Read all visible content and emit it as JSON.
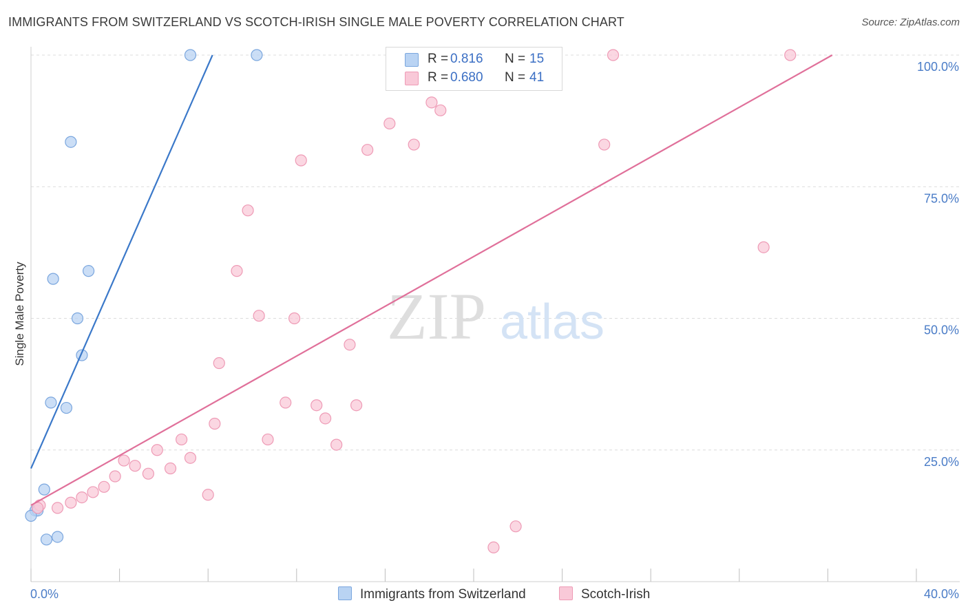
{
  "header": {
    "title": "IMMIGRANTS FROM SWITZERLAND VS SCOTCH-IRISH SINGLE MALE POVERTY CORRELATION CHART",
    "source": "Source: ZipAtlas.com"
  },
  "watermark": {
    "zip": "ZIP",
    "atlas": "atlas"
  },
  "legend": {
    "r_label": "R =",
    "n_label": "N =",
    "series": [
      {
        "name": "Immigrants from Switzerland",
        "r": "0.816",
        "n": "15"
      },
      {
        "name": "Scotch-Irish",
        "r": "0.680",
        "n": "41"
      }
    ]
  },
  "colors": {
    "blue_fill": "#b9d3f3",
    "blue_stroke": "#7aa6de",
    "blue_line": "#3a78c9",
    "pink_fill": "#f9c9d8",
    "pink_stroke": "#ee9ab5",
    "pink_line": "#e0709a",
    "tick_label": "#4a7cc7",
    "grid": "#dcdcdc"
  },
  "chart_data": {
    "type": "scatter",
    "title": "IMMIGRANTS FROM SWITZERLAND VS SCOTCH-IRISH SINGLE MALE POVERTY CORRELATION CHART",
    "xlabel": "",
    "ylabel": "Single Male Poverty",
    "xlim": [
      0,
      40
    ],
    "ylim": [
      0,
      100
    ],
    "x_tick_labels": [
      "0.0%",
      "40.0%"
    ],
    "y_tick_labels": [
      "25.0%",
      "50.0%",
      "75.0%",
      "100.0%"
    ],
    "y_ticks": [
      25,
      50,
      75,
      100
    ],
    "grid": true,
    "series": [
      {
        "name": "Immigrants from Switzerland",
        "color": "blue",
        "r": 0.816,
        "n": 15,
        "trendline": [
          [
            0.0,
            21.5
          ],
          [
            8.2,
            100
          ]
        ],
        "points": [
          [
            7.2,
            100
          ],
          [
            10.2,
            100
          ],
          [
            1.8,
            83.5
          ],
          [
            2.6,
            59
          ],
          [
            1.0,
            57.5
          ],
          [
            2.1,
            50
          ],
          [
            2.3,
            43
          ],
          [
            0.9,
            34
          ],
          [
            1.6,
            33
          ],
          [
            0.6,
            17.5
          ],
          [
            0.2,
            13.5
          ],
          [
            0.3,
            13.5
          ],
          [
            0.0,
            12.5
          ],
          [
            1.2,
            8.5
          ],
          [
            0.7,
            8
          ]
        ]
      },
      {
        "name": "Scotch-Irish",
        "color": "pink",
        "r": 0.68,
        "n": 41,
        "trendline": [
          [
            0.0,
            14.5
          ],
          [
            36.2,
            100
          ]
        ],
        "points": [
          [
            26.3,
            100
          ],
          [
            34.3,
            100
          ],
          [
            18.1,
            91
          ],
          [
            18.5,
            89.5
          ],
          [
            16.2,
            87
          ],
          [
            15.2,
            82
          ],
          [
            17.3,
            83
          ],
          [
            25.9,
            83
          ],
          [
            12.2,
            80
          ],
          [
            9.8,
            70.5
          ],
          [
            33.1,
            63.5
          ],
          [
            9.3,
            59
          ],
          [
            10.3,
            50.5
          ],
          [
            11.9,
            50
          ],
          [
            14.4,
            45
          ],
          [
            8.5,
            41.5
          ],
          [
            11.5,
            34
          ],
          [
            12.9,
            33.5
          ],
          [
            14.7,
            33.5
          ],
          [
            13.3,
            31
          ],
          [
            8.3,
            30
          ],
          [
            6.8,
            27
          ],
          [
            10.7,
            27
          ],
          [
            13.8,
            26
          ],
          [
            5.7,
            25
          ],
          [
            4.2,
            23
          ],
          [
            7.2,
            23.5
          ],
          [
            4.7,
            22
          ],
          [
            6.3,
            21.5
          ],
          [
            5.3,
            20.5
          ],
          [
            3.8,
            20
          ],
          [
            3.3,
            18
          ],
          [
            2.8,
            17
          ],
          [
            8.0,
            16.5
          ],
          [
            2.3,
            16
          ],
          [
            1.8,
            15
          ],
          [
            1.2,
            14
          ],
          [
            0.4,
            14.5
          ],
          [
            0.3,
            14
          ],
          [
            21.9,
            10.5
          ],
          [
            20.9,
            6.5
          ]
        ]
      }
    ]
  }
}
